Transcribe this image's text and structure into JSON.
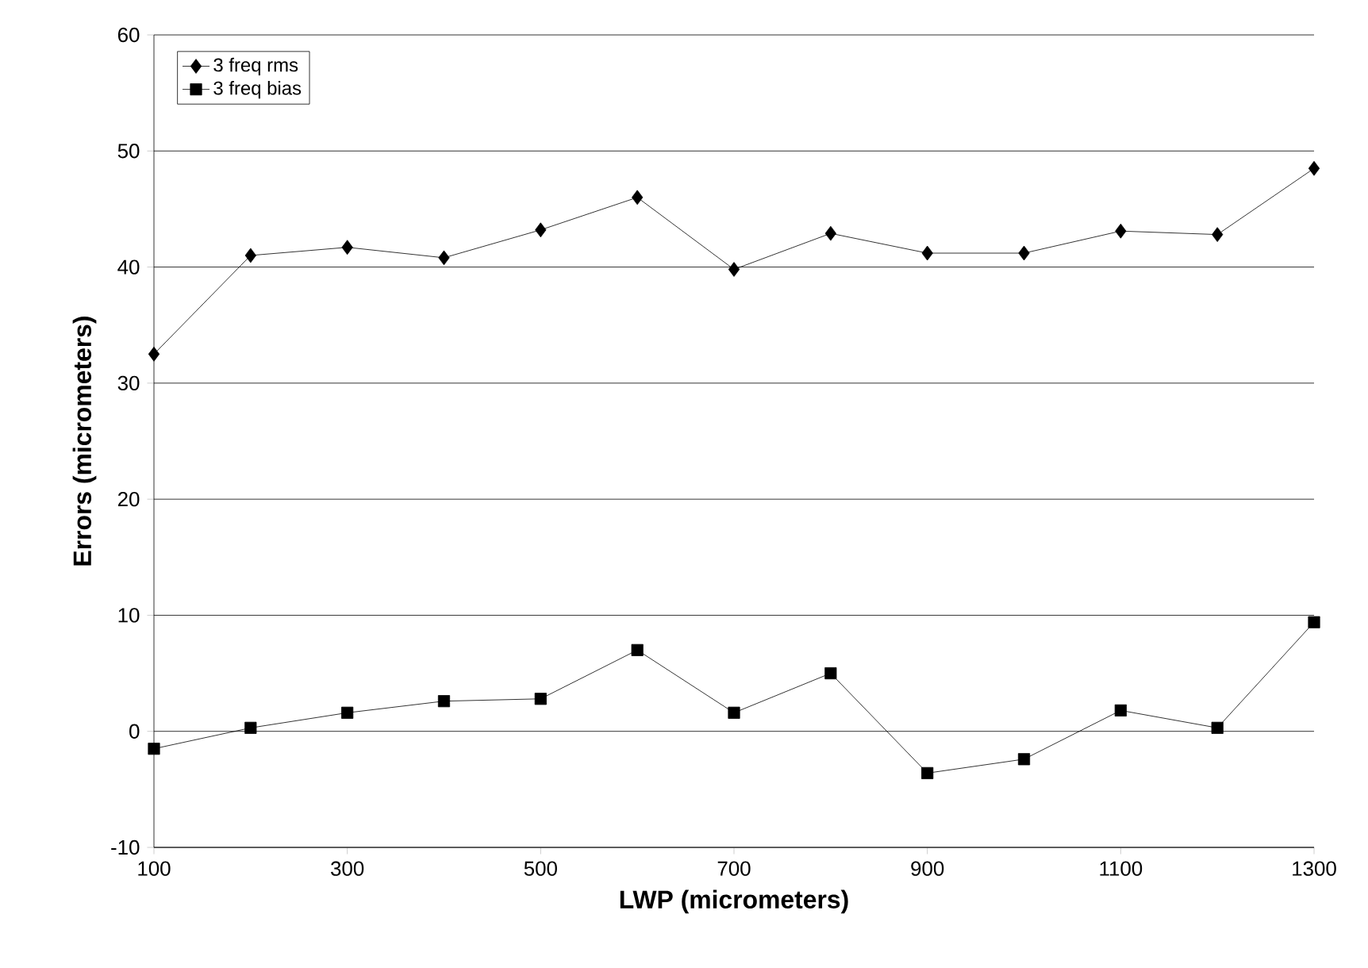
{
  "chart_data": {
    "type": "line",
    "xlabel": "LWP (micrometers)",
    "ylabel": "Errors (micrometers)",
    "x": [
      100,
      200,
      300,
      400,
      500,
      600,
      700,
      800,
      900,
      1000,
      1100,
      1200,
      1300
    ],
    "series": [
      {
        "name": "3 freq rms",
        "color": "#000000",
        "marker": "diamond",
        "values": [
          32.5,
          41.0,
          41.7,
          40.8,
          43.2,
          46.0,
          39.8,
          42.9,
          41.2,
          41.2,
          43.1,
          42.8,
          48.5
        ]
      },
      {
        "name": "3 freq bias",
        "color": "#000000",
        "marker": "square",
        "values": [
          -1.5,
          0.3,
          1.6,
          2.6,
          2.8,
          7.0,
          1.6,
          5.0,
          -3.6,
          -2.4,
          1.8,
          0.3,
          9.4
        ]
      }
    ],
    "xlim": [
      100,
      1300
    ],
    "xticks": [
      100,
      300,
      500,
      700,
      900,
      1100,
      1300
    ],
    "ylim": [
      -10,
      60
    ],
    "yticks": [
      -10,
      0,
      10,
      20,
      30,
      40,
      50,
      60
    ],
    "grid": "y",
    "legend": "top left",
    "line_style": "solid"
  }
}
